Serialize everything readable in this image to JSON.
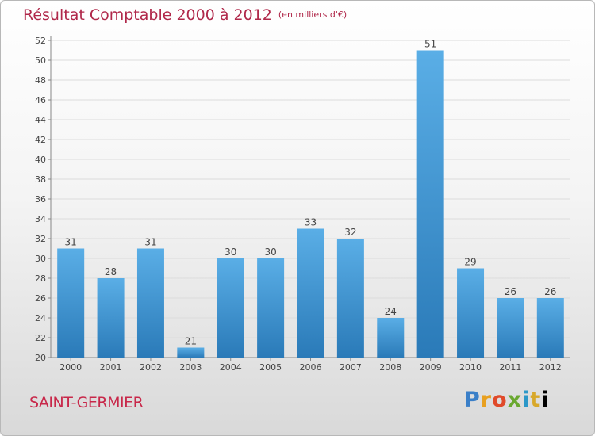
{
  "header": {
    "title": "Résultat Comptable 2000 à 2012",
    "unit": "(en milliers d'€)"
  },
  "footer": {
    "city": "SAINT-GERMIER",
    "logo": "Proxiti"
  },
  "colors": {
    "title": "#b0284a",
    "bar_light": "#5aaee6",
    "bar_dark": "#2a7ab8"
  },
  "chart_data": {
    "type": "bar",
    "title": "Résultat Comptable 2000 à 2012",
    "subtitle": "(en milliers d'€)",
    "xlabel": "",
    "ylabel": "",
    "categories": [
      "2000",
      "2001",
      "2002",
      "2003",
      "2004",
      "2005",
      "2006",
      "2007",
      "2008",
      "2009",
      "2010",
      "2011",
      "2012"
    ],
    "values": [
      31,
      28,
      31,
      21,
      30,
      30,
      33,
      32,
      24,
      51,
      29,
      26,
      26
    ],
    "ylim": [
      20,
      52
    ],
    "yticks": [
      20,
      22,
      24,
      26,
      28,
      30,
      32,
      34,
      36,
      38,
      40,
      42,
      44,
      46,
      48,
      50,
      52
    ],
    "grid": true,
    "legend": "none"
  }
}
